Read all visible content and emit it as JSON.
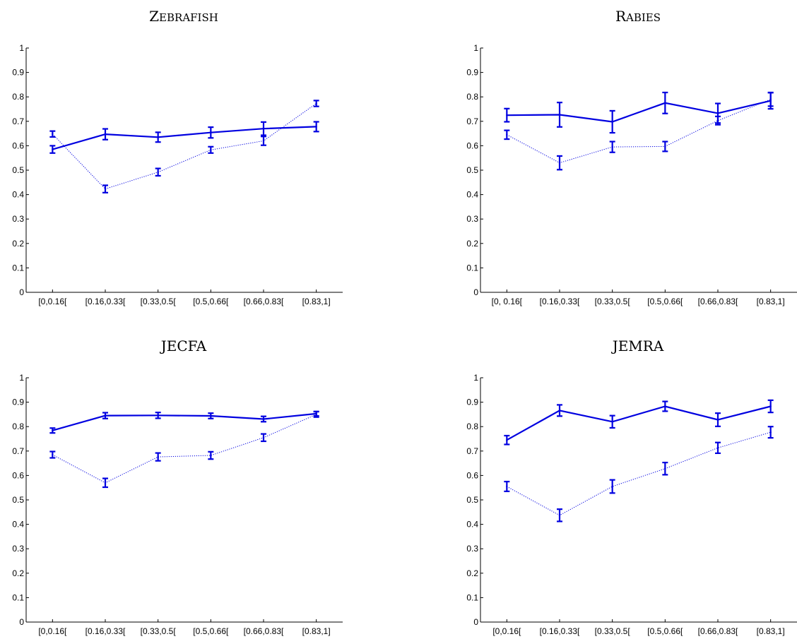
{
  "chart_data": [
    {
      "type": "line",
      "title": "Zebrafish",
      "categories": [
        "[0,0.16[",
        "[0.16,0.33[",
        "[0.33,0.5[",
        "[0.5,0.66[",
        "[0.66,0.83[",
        "[0.83,1]"
      ],
      "ylim": [
        0,
        1
      ],
      "yticks": [
        "0",
        "0.1",
        "0.2",
        "0.3",
        "0.4",
        "0.5",
        "0.6",
        "0.7",
        "0.8",
        "0.9",
        "1"
      ],
      "grid": false,
      "series": [
        {
          "style": "solid",
          "values": [
            0.585,
            0.647,
            0.635,
            0.654,
            0.67,
            0.678
          ],
          "errors": [
            0.015,
            0.022,
            0.02,
            0.022,
            0.027,
            0.02
          ]
        },
        {
          "style": "dotted",
          "values": [
            0.648,
            0.423,
            0.492,
            0.583,
            0.62,
            0.773
          ],
          "errors": [
            0.012,
            0.015,
            0.015,
            0.013,
            0.018,
            0.012
          ]
        }
      ]
    },
    {
      "type": "line",
      "title": "Rabies",
      "categories": [
        "[0, 0.16[",
        "[0.16,0.33[",
        "[0.33,0.5[",
        "[0.5,0.66[",
        "[0.66,0.83[",
        "[0.83,1]"
      ],
      "ylim": [
        0,
        1
      ],
      "yticks": [
        "0",
        "0.1",
        "0.2",
        "0.3",
        "0.4",
        "0.5",
        "0.6",
        "0.7",
        "0.8",
        "0.9",
        "1"
      ],
      "grid": false,
      "series": [
        {
          "style": "solid",
          "values": [
            0.725,
            0.727,
            0.698,
            0.775,
            0.733,
            0.784
          ],
          "errors": [
            0.027,
            0.05,
            0.045,
            0.043,
            0.04,
            0.033
          ]
        },
        {
          "style": "dotted",
          "values": [
            0.645,
            0.53,
            0.595,
            0.597,
            0.703,
            0.79
          ],
          "errors": [
            0.018,
            0.028,
            0.022,
            0.02,
            0.017,
            0.028
          ]
        }
      ]
    },
    {
      "type": "line",
      "title": "JECFA",
      "categories": [
        "[0,0.16[",
        "[0.16,0.33[",
        "[0.33,0.5[",
        "[0.5,0.66[",
        "[0.66,0.83[",
        "[0.83,1]"
      ],
      "ylim": [
        0,
        1
      ],
      "yticks": [
        "0",
        "0.1",
        "0.2",
        "0.3",
        "0.4",
        "0.5",
        "0.6",
        "0.7",
        "0.8",
        "0.9",
        "1"
      ],
      "grid": false,
      "series": [
        {
          "style": "solid",
          "values": [
            0.784,
            0.845,
            0.846,
            0.844,
            0.831,
            0.853
          ],
          "errors": [
            0.01,
            0.012,
            0.012,
            0.011,
            0.011,
            0.009
          ]
        },
        {
          "style": "dotted",
          "values": [
            0.685,
            0.57,
            0.676,
            0.682,
            0.755,
            0.85
          ],
          "errors": [
            0.013,
            0.018,
            0.016,
            0.015,
            0.015,
            0.011
          ]
        }
      ]
    },
    {
      "type": "line",
      "title": "JEMRA",
      "categories": [
        "[0,0.16[",
        "[0.16,0.33[",
        "[0.33,0.5[",
        "[0.5,0.66[",
        "[0.66,0.83[",
        "[0.83,1]"
      ],
      "ylim": [
        0,
        1
      ],
      "yticks": [
        "0",
        "0.1",
        "0.2",
        "0.3",
        "0.4",
        "0.5",
        "0.6",
        "0.7",
        "0.8",
        "0.9",
        "1"
      ],
      "grid": false,
      "series": [
        {
          "style": "solid",
          "values": [
            0.745,
            0.866,
            0.82,
            0.883,
            0.828,
            0.883
          ],
          "errors": [
            0.018,
            0.023,
            0.025,
            0.02,
            0.027,
            0.025
          ]
        },
        {
          "style": "dotted",
          "values": [
            0.555,
            0.437,
            0.555,
            0.628,
            0.713,
            0.777
          ],
          "errors": [
            0.02,
            0.025,
            0.027,
            0.025,
            0.022,
            0.023
          ]
        }
      ]
    }
  ],
  "colors": {
    "series": "#0000e0",
    "axis": "#000000"
  }
}
